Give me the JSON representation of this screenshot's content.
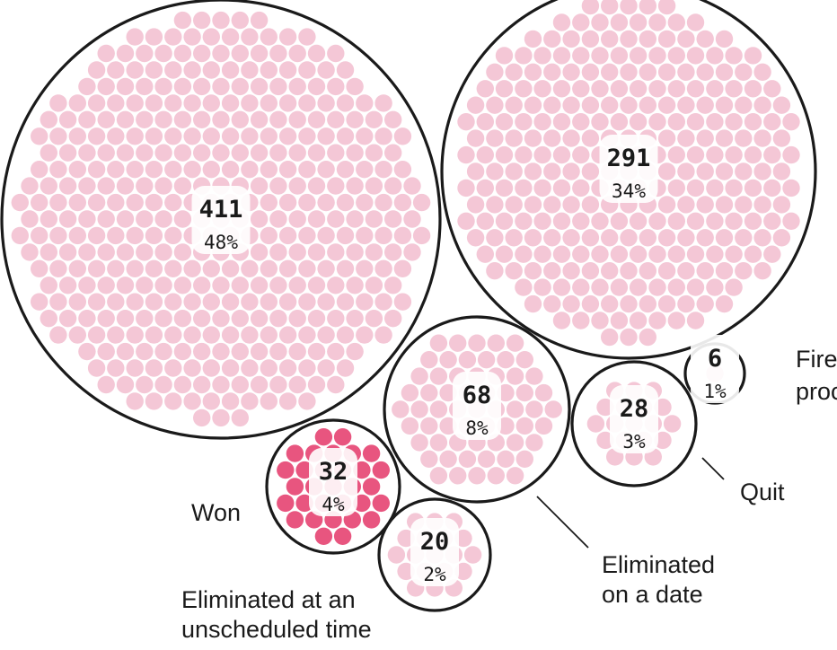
{
  "chart_data": {
    "type": "packed-bubble",
    "title": "",
    "total_dot_color": "#f4c7d6",
    "highlight_dot_color": "#e8557f",
    "outline_color": "#1a1a1a",
    "groups": [
      {
        "id": "g411",
        "count": "411",
        "value": 411,
        "pct": "48%",
        "label_lines": [],
        "highlight": false
      },
      {
        "id": "g291",
        "count": "291",
        "value": 291,
        "pct": "34%",
        "label_lines": [],
        "highlight": false
      },
      {
        "id": "g68",
        "count": "68",
        "value": 68,
        "pct": "8%",
        "label_lines": [
          "Eliminated",
          "on a date"
        ],
        "highlight": false
      },
      {
        "id": "g32",
        "count": "32",
        "value": 32,
        "pct": "4%",
        "label_lines": [
          "Won"
        ],
        "highlight": true
      },
      {
        "id": "g28",
        "count": "28",
        "value": 28,
        "pct": "3%",
        "label_lines": [
          "Quit"
        ],
        "highlight": false
      },
      {
        "id": "g20",
        "count": "20",
        "value": 20,
        "pct": "2%",
        "label_lines": [
          "Eliminated at an",
          "unscheduled time"
        ],
        "highlight": false
      },
      {
        "id": "g6",
        "count": "6",
        "value": 6,
        "pct": "1%",
        "label_lines": [
          "Fire",
          "proc"
        ],
        "highlight": false
      }
    ]
  }
}
